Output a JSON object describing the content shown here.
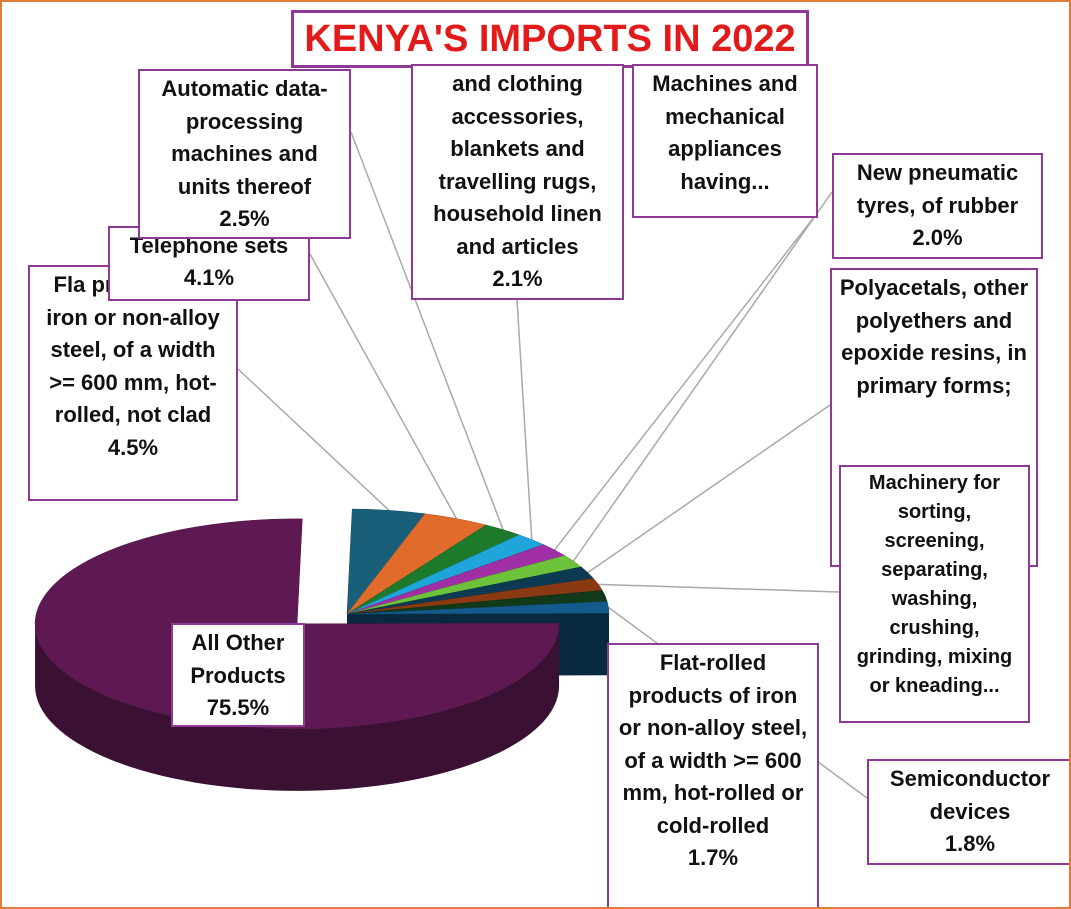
{
  "chart_data": {
    "type": "pie",
    "title": "KENYA'S IMPORTS IN 2022",
    "slices": [
      {
        "label": "All Other Products",
        "value": 75.5,
        "value_label": "75.5%",
        "color": "#5e1952"
      },
      {
        "label": "Flat-rolled products of iron or non-alloy steel, of a width >= 600 mm, hot-rolled, not clad",
        "value": 4.5,
        "value_label": "4.5%",
        "color": "#1a5f7a"
      },
      {
        "label": "Telephone sets",
        "value": 4.1,
        "value_label": "4.1%",
        "color": "#e06b2a"
      },
      {
        "label": "Automatic data-processing machines and units thereof",
        "value": 2.5,
        "value_label": "2.5%",
        "color": "#1c7a2a"
      },
      {
        "label": "and clothing accessories, blankets and travelling rugs, household linen and articles",
        "value": 2.1,
        "value_label": "2.1%",
        "color": "#1ea5d9"
      },
      {
        "label": "Machines and mechanical appliances having...",
        "value": 2.1,
        "value_label": "",
        "color": "#a02ea5"
      },
      {
        "label": "New pneumatic tyres, of rubber",
        "value": 2.0,
        "value_label": "2.0%",
        "color": "#6cc23a"
      },
      {
        "label": "Polyacetals, other polyethers and epoxide resins, in primary forms;",
        "value": 1.9,
        "value_label": "",
        "color": "#0b3a52"
      },
      {
        "label": "Machinery for sorting, screening, separating, washing, crushing, grinding, mixing or kneading...",
        "value": 1.9,
        "value_label": "",
        "color": "#8a3a12"
      },
      {
        "label": "Flat-rolled products of iron or non-alloy steel, of a width >= 600 mm, hot-rolled or cold-rolled",
        "value": 1.7,
        "value_label": "1.7%",
        "color": "#123a1a"
      },
      {
        "label": "Semiconductor devices",
        "value": 1.8,
        "value_label": "1.8%",
        "color": "#145a8a"
      }
    ]
  },
  "labels": [
    {
      "name": "Fla products of iron or non-alloy steel, of a width >= 600 mm, hot-rolled, not clad",
      "pct": "4.5%"
    },
    {
      "name": "Telephone sets",
      "pct": "4.1%"
    },
    {
      "name": "Automatic data-processing machines and units thereof",
      "pct": "2.5%"
    },
    {
      "name": "and clothing accessories, blankets and travelling rugs, household linen and articles",
      "pct": "2.1%"
    },
    {
      "name": "Machines and mechanical appliances having...",
      "pct": ""
    },
    {
      "name": "New pneumatic tyres, of rubber",
      "pct": "2.0%"
    },
    {
      "name": "Polyacetals, other polyethers and epoxide resins, in primary forms;",
      "pct": ""
    },
    {
      "name": "Machinery for sorting, screening, separating, washing, crushing, grinding, mixing or kneading...",
      "pct": ""
    },
    {
      "name": "Flat-rolled products of iron or non-alloy steel, of a width >= 600 mm, hot-rolled or cold-rolled",
      "pct": "1.7%"
    },
    {
      "name": "Semiconductor devices",
      "pct": "1.8%"
    },
    {
      "name": "All Other Products",
      "pct": "75.5%"
    }
  ]
}
